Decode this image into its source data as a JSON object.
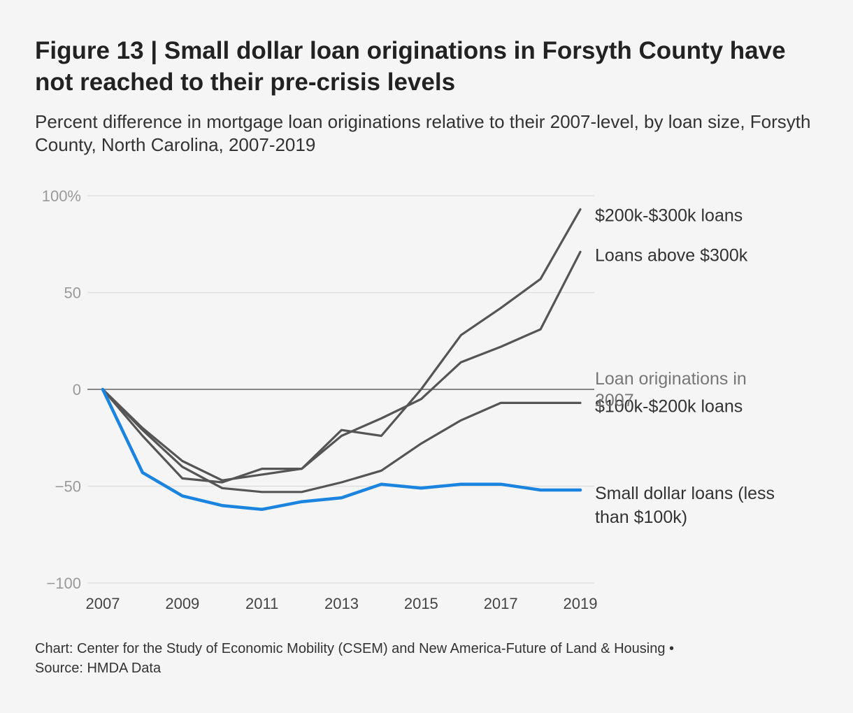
{
  "title": "Figure 13 | Small dollar loan originations in Forsyth County have not reached to their pre-crisis levels",
  "subtitle": "Percent difference in mortgage loan originations relative to their 2007-level, by loan size, Forsyth County, North Carolina, 2007-2019",
  "footer": {
    "credit": "Chart: Center for the Study of Economic Mobility (CSEM) and New America-Future of Land & Housing •",
    "source": "Source: HMDA Data"
  },
  "colors": {
    "highlight": "#1a84de",
    "series": "#555555",
    "baseline": "#444444",
    "grid": "#dddddd",
    "tick": "#999999",
    "baseline_label": "#777777"
  },
  "chart_data": {
    "type": "line",
    "title": "Figure 13 | Small dollar loan originations in Forsyth County have not reached to their pre-crisis levels",
    "xlabel": "",
    "ylabel": "",
    "x": [
      2007,
      2008,
      2009,
      2010,
      2011,
      2012,
      2013,
      2014,
      2015,
      2016,
      2017,
      2018,
      2019
    ],
    "xticks": [
      2007,
      2009,
      2011,
      2013,
      2015,
      2017,
      2019
    ],
    "xtick_labels": [
      "2007",
      "2009",
      "2011",
      "2013",
      "2015",
      "2017",
      "2019"
    ],
    "ylim": [
      -100,
      100
    ],
    "yticks": [
      100,
      50,
      0,
      -50,
      -100
    ],
    "ytick_labels": [
      "100%",
      "50",
      "0",
      "−50",
      "−100"
    ],
    "grid": true,
    "baseline": {
      "value": 0,
      "label": "Loan originations in 2007"
    },
    "series": [
      {
        "name": "$200k-$300k loans",
        "label_lines": [
          "$200k-$300k loans"
        ],
        "highlight": false,
        "values": [
          0,
          -20,
          -37,
          -47,
          -44,
          -41,
          -21,
          -24,
          0,
          28,
          42,
          57,
          93
        ]
      },
      {
        "name": "Loans above $300k",
        "label_lines": [
          "Loans above $300k"
        ],
        "highlight": false,
        "values": [
          0,
          -24,
          -46,
          -48,
          -41,
          -41,
          -24,
          -15,
          -5,
          14,
          22,
          31,
          71
        ]
      },
      {
        "name": "$100k-$200k loans",
        "label_lines": [
          "$100k-$200k loans"
        ],
        "highlight": false,
        "values": [
          0,
          -21,
          -40,
          -51,
          -53,
          -53,
          -48,
          -42,
          -28,
          -16,
          -7,
          -7,
          -7
        ]
      },
      {
        "name": "Small dollar loans (less than $100k)",
        "label_lines": [
          "Small dollar loans (less",
          "than $100k)"
        ],
        "highlight": true,
        "values": [
          0,
          -43,
          -55,
          -60,
          -62,
          -58,
          -56,
          -49,
          -51,
          -49,
          -49,
          -52,
          -52
        ]
      }
    ]
  }
}
